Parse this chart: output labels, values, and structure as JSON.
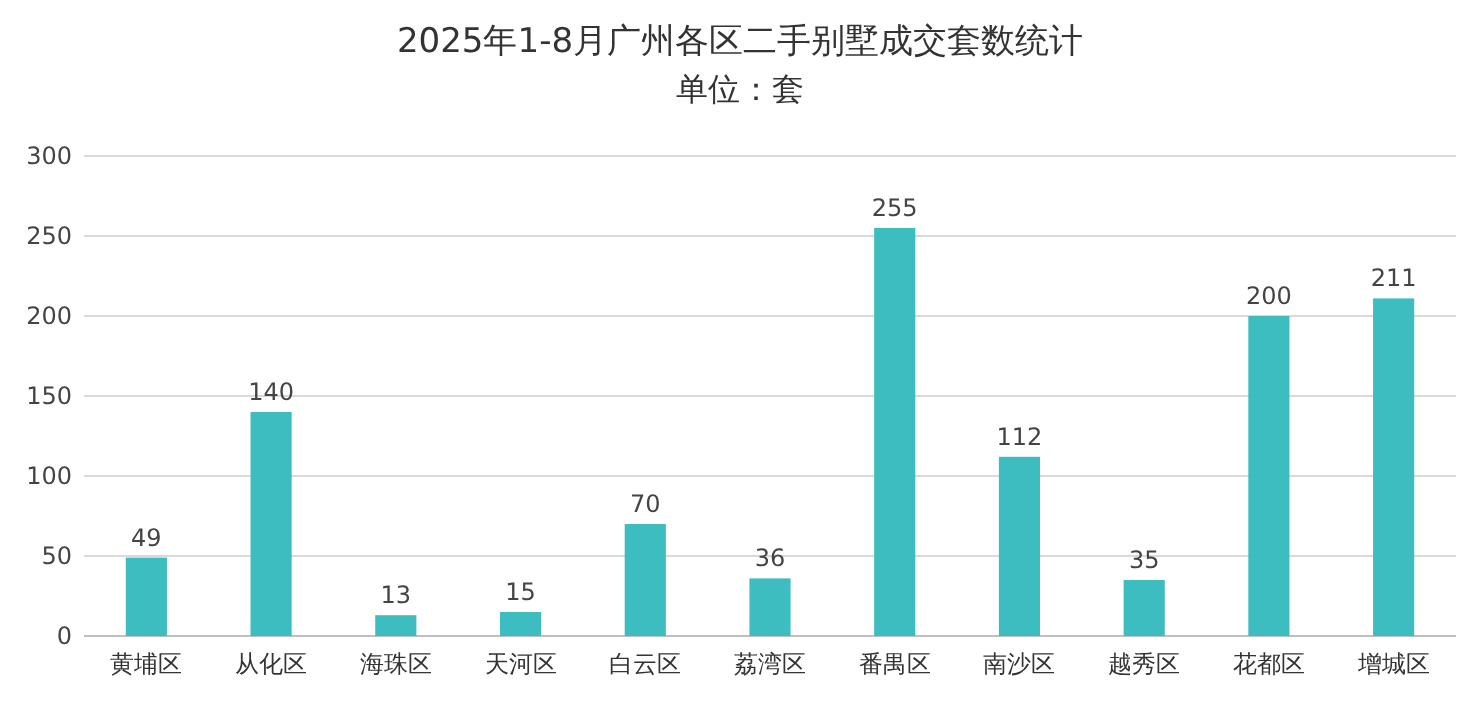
{
  "chart_data": {
    "type": "bar",
    "title": "2025年1-8月广州各区二手别墅成交套数统计",
    "subtitle": "单位：套",
    "categories": [
      "黄埔区",
      "从化区",
      "海珠区",
      "天河区",
      "白云区",
      "荔湾区",
      "番禺区",
      "南沙区",
      "越秀区",
      "花都区",
      "增城区"
    ],
    "values": [
      49,
      140,
      13,
      15,
      70,
      36,
      255,
      112,
      35,
      200,
      211
    ],
    "color": "#3dbdc0",
    "ylim": [
      0,
      300
    ],
    "yticks": [
      0,
      50,
      100,
      150,
      200,
      250,
      300
    ],
    "grid": "y",
    "data_labels": true
  }
}
